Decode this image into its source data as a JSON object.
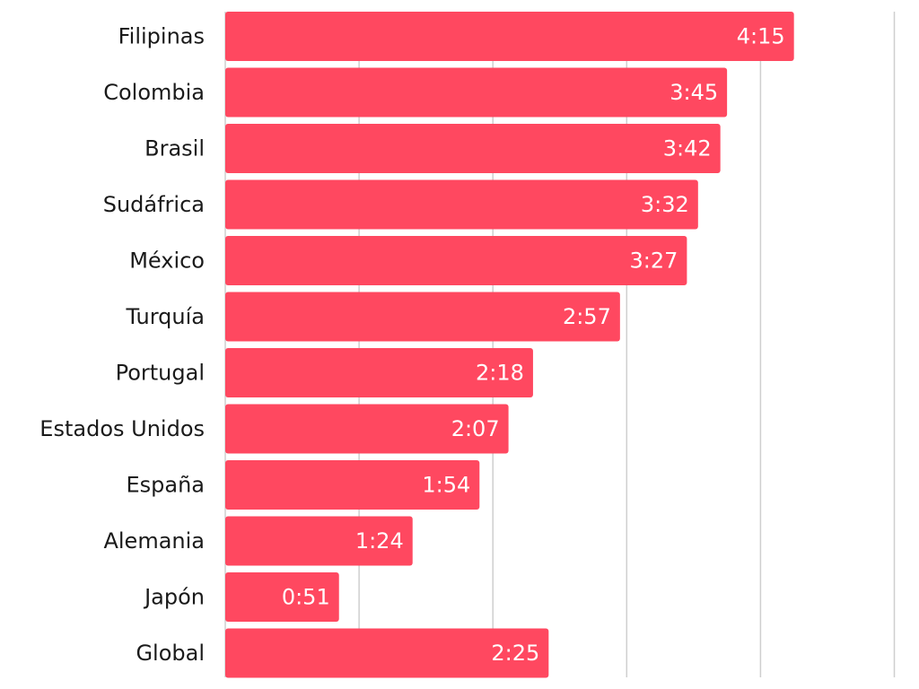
{
  "chart_data": {
    "type": "bar",
    "orientation": "horizontal",
    "categories": [
      "Filipinas",
      "Colombia",
      "Brasil",
      "Sudáfrica",
      "México",
      "Turquía",
      "Portugal",
      "Estados Unidos",
      "España",
      "Alemania",
      "Japón",
      "Global"
    ],
    "values": [
      255,
      225,
      222,
      212,
      207,
      177,
      138,
      127,
      114,
      84,
      51,
      145
    ],
    "value_labels": [
      "4:15",
      "3:45",
      "3:42",
      "3:32",
      "3:27",
      "2:57",
      "2:18",
      "2:07",
      "1:54",
      "1:24",
      "0:51",
      "2:25"
    ],
    "value_unit": "minutes",
    "xlim": [
      0,
      300
    ],
    "grid": true,
    "legend": "none",
    "title": "",
    "xlabel": "",
    "ylabel": "",
    "bar_color": "#ff4860",
    "grid_color": "#cfcfcf"
  }
}
